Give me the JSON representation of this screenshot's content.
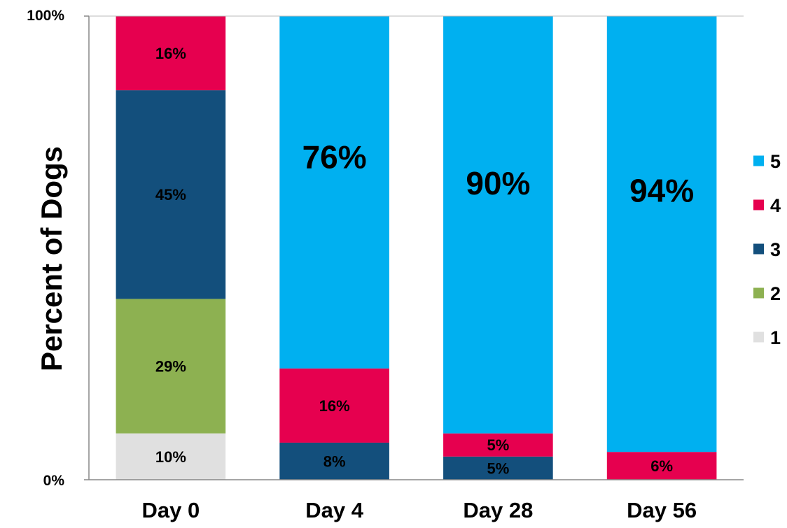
{
  "chart_data": {
    "type": "bar",
    "stacked": true,
    "title": "",
    "xlabel": "",
    "ylabel": "Percent of Dogs",
    "ylim": [
      0,
      100
    ],
    "y_ticks": [
      "0%",
      "100%"
    ],
    "categories": [
      "Day 0",
      "Day 4",
      "Day 28",
      "Day 56"
    ],
    "series": [
      {
        "name": "1",
        "color": "#e0e0e0",
        "values": [
          10,
          0,
          0,
          0
        ],
        "labels": [
          "10%",
          "",
          "",
          ""
        ]
      },
      {
        "name": "2",
        "color": "#8db151",
        "values": [
          29,
          0,
          0,
          0
        ],
        "labels": [
          "29%",
          "",
          "",
          ""
        ]
      },
      {
        "name": "3",
        "color": "#134f7c",
        "values": [
          45,
          8,
          5,
          0
        ],
        "labels": [
          "45%",
          "8%",
          "5%",
          ""
        ]
      },
      {
        "name": "4",
        "color": "#e6004f",
        "values": [
          16,
          16,
          5,
          6
        ],
        "labels": [
          "16%",
          "16%",
          "5%",
          "6%"
        ]
      },
      {
        "name": "5",
        "color": "#00b0f0",
        "values": [
          0,
          76,
          90,
          94
        ],
        "labels": [
          "",
          "76%",
          "90%",
          "94%"
        ]
      }
    ],
    "legend": {
      "placement": "right",
      "order": [
        "5",
        "4",
        "3",
        "2",
        "1"
      ]
    },
    "grid": false
  }
}
